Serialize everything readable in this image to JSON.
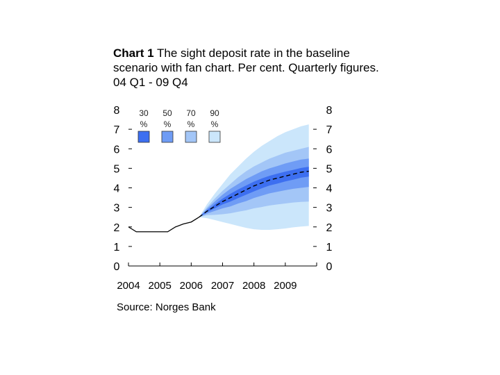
{
  "title": {
    "number": "Chart 1",
    "text": "The sight deposit rate in the baseline scenario with fan chart. Per cent. Quarterly figures. 04 Q1 - 09 Q4"
  },
  "source": "Source: Norges Bank",
  "colors": {
    "band30": "#3d6ff0",
    "band50": "#6f9cf5",
    "band70": "#a3c6f7",
    "band90": "#cbe6fb",
    "line": "#000000"
  },
  "chart_data": {
    "type": "area",
    "x_tick_labels": [
      "2004",
      "2005",
      "2006",
      "2007",
      "2008",
      "2009"
    ],
    "ylim": [
      0,
      8
    ],
    "y_ticks": [
      0,
      1,
      2,
      3,
      4,
      5,
      6,
      7,
      8
    ],
    "legend": [
      {
        "label": "30",
        "unit": "%",
        "color_key": "band30"
      },
      {
        "label": "50",
        "unit": "%",
        "color_key": "band50"
      },
      {
        "label": "70",
        "unit": "%",
        "color_key": "band70"
      },
      {
        "label": "90",
        "unit": "%",
        "color_key": "band90"
      }
    ],
    "history": {
      "x": [
        2004.0,
        2004.25,
        2004.5,
        2004.75,
        2005.0,
        2005.25,
        2005.5,
        2005.75,
        2006.0,
        2006.25
      ],
      "y": [
        2.0,
        1.75,
        1.75,
        1.75,
        1.75,
        1.75,
        2.0,
        2.15,
        2.25,
        2.5
      ]
    },
    "baseline": {
      "x": [
        2006.25,
        2006.5,
        2006.75,
        2007.0,
        2007.25,
        2007.5,
        2007.75,
        2008.0,
        2008.25,
        2008.5,
        2008.75,
        2009.0,
        2009.25,
        2009.5,
        2009.75
      ],
      "y": [
        2.5,
        2.8,
        3.05,
        3.3,
        3.5,
        3.7,
        3.9,
        4.1,
        4.25,
        4.4,
        4.5,
        4.6,
        4.7,
        4.8,
        4.85
      ]
    },
    "fan": {
      "x": [
        2006.25,
        2006.5,
        2006.75,
        2007.0,
        2007.25,
        2007.5,
        2007.75,
        2008.0,
        2008.25,
        2008.5,
        2008.75,
        2009.0,
        2009.25,
        2009.5,
        2009.75
      ],
      "upper90": [
        2.5,
        3.15,
        3.7,
        4.2,
        4.7,
        5.1,
        5.5,
        5.85,
        6.15,
        6.4,
        6.65,
        6.85,
        7.0,
        7.15,
        7.25
      ],
      "upper70": [
        2.5,
        3.0,
        3.45,
        3.85,
        4.2,
        4.55,
        4.85,
        5.1,
        5.3,
        5.5,
        5.65,
        5.8,
        5.9,
        6.0,
        6.1
      ],
      "upper50": [
        2.5,
        2.92,
        3.3,
        3.65,
        3.95,
        4.2,
        4.45,
        4.65,
        4.85,
        5.0,
        5.12,
        5.25,
        5.35,
        5.45,
        5.5
      ],
      "upper30": [
        2.5,
        2.85,
        3.15,
        3.45,
        3.7,
        3.92,
        4.12,
        4.32,
        4.48,
        4.62,
        4.73,
        4.83,
        4.92,
        5.02,
        5.08
      ],
      "lower30": [
        2.5,
        2.75,
        2.95,
        3.15,
        3.3,
        3.48,
        3.65,
        3.82,
        3.98,
        4.12,
        4.22,
        4.33,
        4.42,
        4.52,
        4.58
      ],
      "lower50": [
        2.5,
        2.68,
        2.82,
        2.95,
        3.05,
        3.2,
        3.32,
        3.48,
        3.6,
        3.72,
        3.8,
        3.88,
        3.95,
        4.0,
        4.05
      ],
      "lower70": [
        2.5,
        2.6,
        2.62,
        2.65,
        2.7,
        2.78,
        2.85,
        2.95,
        3.02,
        3.1,
        3.15,
        3.2,
        3.25,
        3.28,
        3.3
      ],
      "lower90": [
        2.5,
        2.45,
        2.35,
        2.25,
        2.15,
        2.05,
        1.95,
        1.88,
        1.85,
        1.85,
        1.88,
        1.92,
        1.98,
        2.02,
        2.05
      ]
    }
  }
}
